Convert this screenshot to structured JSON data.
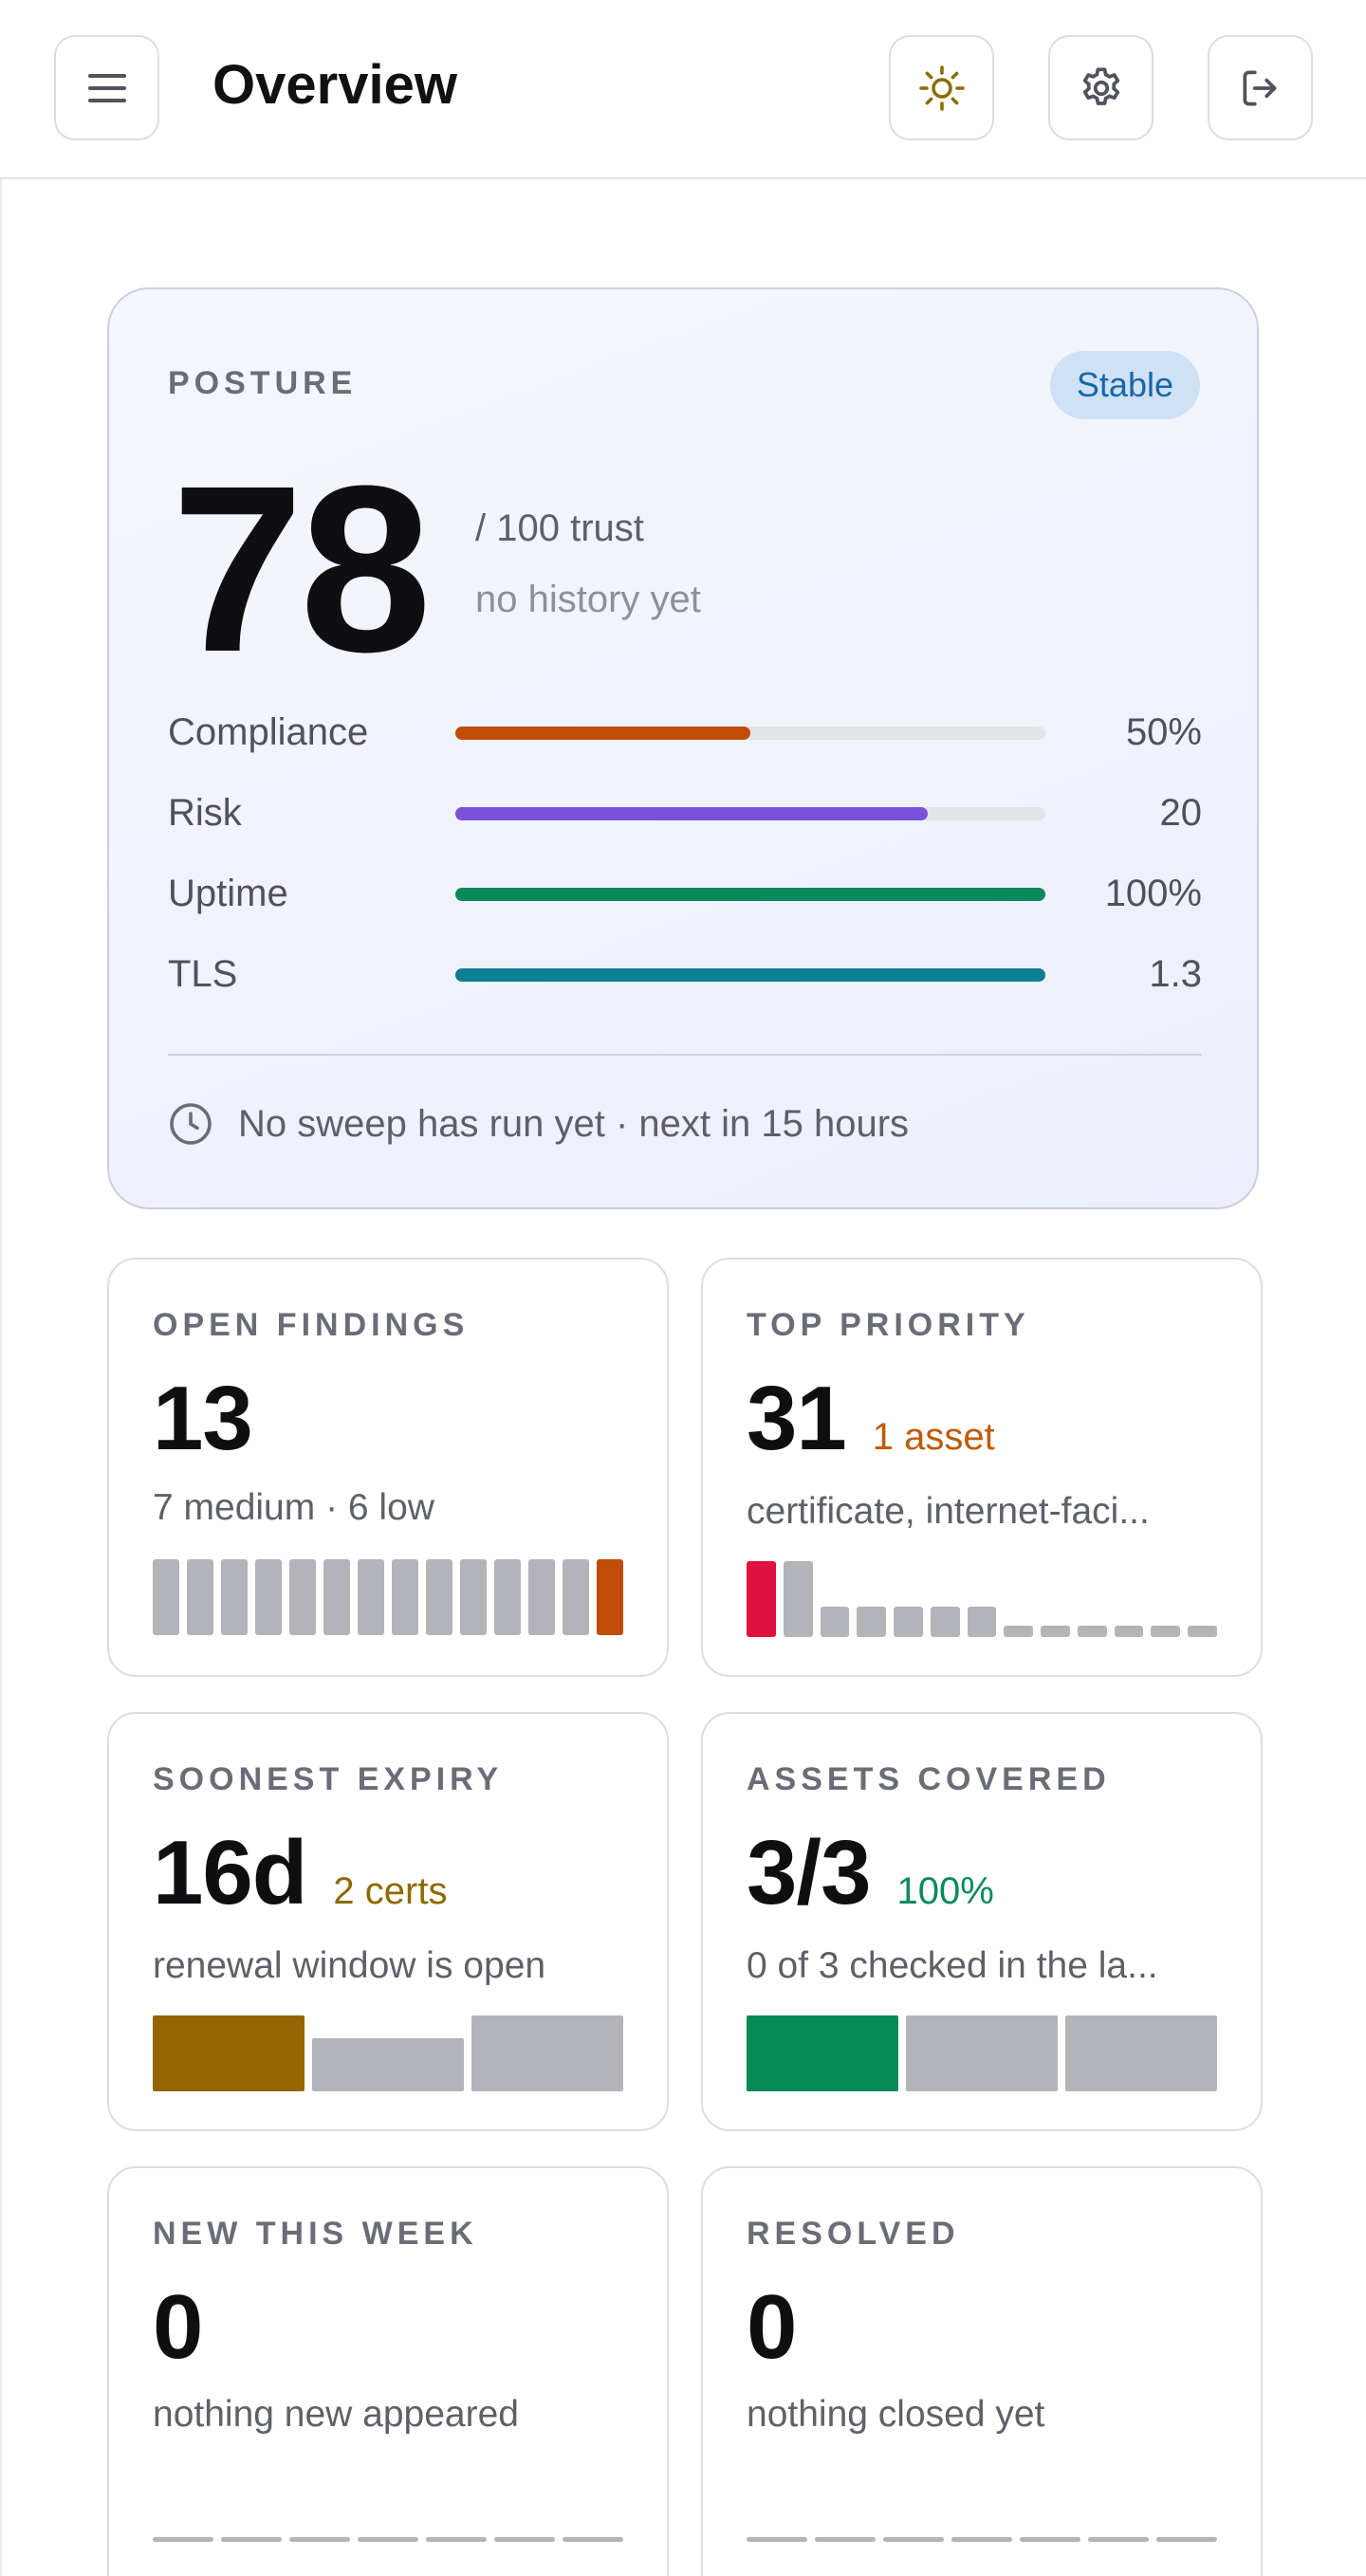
{
  "header": {
    "title": "Overview",
    "icons": [
      "menu-icon",
      "sun-icon",
      "gear-icon",
      "logout-icon"
    ]
  },
  "posture": {
    "label": "POSTURE",
    "badge": "Stable",
    "score": "78",
    "score_suffix": "/ 100 trust",
    "history_note": "no history yet",
    "metrics": [
      {
        "label": "Compliance",
        "value": "50%",
        "fraction": 0.5,
        "color": "#c04c08"
      },
      {
        "label": "Risk",
        "value": "20",
        "fraction": 0.8,
        "color": "#7a52d9"
      },
      {
        "label": "Uptime",
        "value": "100%",
        "fraction": 1.0,
        "color": "#0a8a5a"
      },
      {
        "label": "TLS",
        "value": "1.3",
        "fraction": 1.0,
        "color": "#0d7f93"
      }
    ],
    "sweep_note": "No sweep has run yet · next in 15 hours"
  },
  "cards": {
    "open_findings": {
      "label": "OPEN FINDINGS",
      "value": "13",
      "sub": "7 medium · 6 low",
      "bars": [
        1,
        1,
        1,
        1,
        1,
        1,
        1,
        1,
        1,
        1,
        1,
        1,
        1
      ],
      "highlight_index": 13,
      "highlight_color": "#c04c08"
    },
    "top_priority": {
      "label": "TOP PRIORITY",
      "value": "31",
      "tag": "1 asset",
      "tag_color": "#c05a08",
      "sub": "certificate, internet-faci...",
      "bars": [
        1.0,
        1.0,
        0.4,
        0.4,
        0.4,
        0.4,
        0.4,
        0.15,
        0.15,
        0.15,
        0.15,
        0.15,
        0.15
      ],
      "highlight_color": "#e0103f"
    },
    "soonest_expiry": {
      "label": "SOONEST EXPIRY",
      "value": "16d",
      "tag": "2 certs",
      "tag_color": "#8c6a00",
      "sub": "renewal window is open",
      "bars": [
        1.0,
        0.7,
        1.0
      ],
      "highlight_color": "#946500"
    },
    "assets_covered": {
      "label": "ASSETS COVERED",
      "value": "3/3",
      "tag": "100%",
      "tag_color": "#0a8a5a",
      "sub": "0 of 3 checked in the la...",
      "bars": [
        1.0,
        1.0,
        1.0
      ],
      "highlight_color": "#068a56"
    },
    "new_this_week": {
      "label": "NEW THIS WEEK",
      "value": "0",
      "sub": "nothing new appeared",
      "bars": [
        0,
        0,
        0,
        0,
        0,
        0,
        0
      ]
    },
    "resolved": {
      "label": "RESOLVED",
      "value": "0",
      "sub": "nothing closed yet",
      "bars": [
        0,
        0,
        0,
        0,
        0,
        0,
        0
      ]
    }
  }
}
